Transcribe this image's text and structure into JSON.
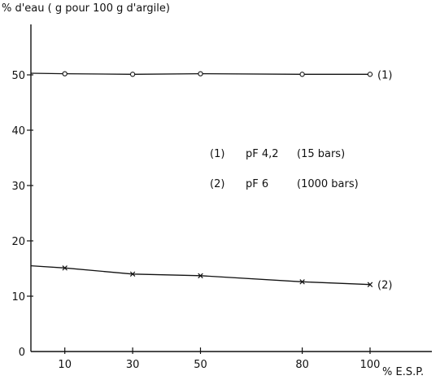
{
  "chart_data": {
    "type": "line",
    "ylabel": "% d'eau ( g pour 100 g d'argile)",
    "xlabel": "% E.S.P.",
    "xlim": [
      0,
      110
    ],
    "ylim": [
      0,
      55
    ],
    "xticks": [
      10,
      30,
      50,
      80,
      100
    ],
    "yticks": [
      0,
      10,
      20,
      30,
      40,
      50
    ],
    "xtick_labels": [
      "10",
      "30",
      "50",
      "80",
      "100"
    ],
    "ytick_labels": [
      "0",
      "10",
      "20",
      "30",
      "40",
      "50"
    ],
    "grid": false,
    "series": [
      {
        "name": "(1)",
        "marker": "circle",
        "x": [
          10,
          30,
          50,
          80,
          100
        ],
        "y": [
          50.2,
          50.1,
          50.2,
          50.1,
          50.1
        ],
        "line_from_axis": 50.3
      },
      {
        "name": "(2)",
        "marker": "x",
        "x": [
          10,
          30,
          50,
          80,
          100
        ],
        "y": [
          15.1,
          14.0,
          13.7,
          12.6,
          12.1
        ],
        "line_from_axis": 15.5
      }
    ],
    "legend": {
      "placement": "center-right",
      "entries": [
        {
          "key": "(1)",
          "text": "pF 4,2",
          "extra": "(15 bars)"
        },
        {
          "key": "(2)",
          "text": "pF 6",
          "extra": "(1000 bars)"
        }
      ]
    }
  }
}
